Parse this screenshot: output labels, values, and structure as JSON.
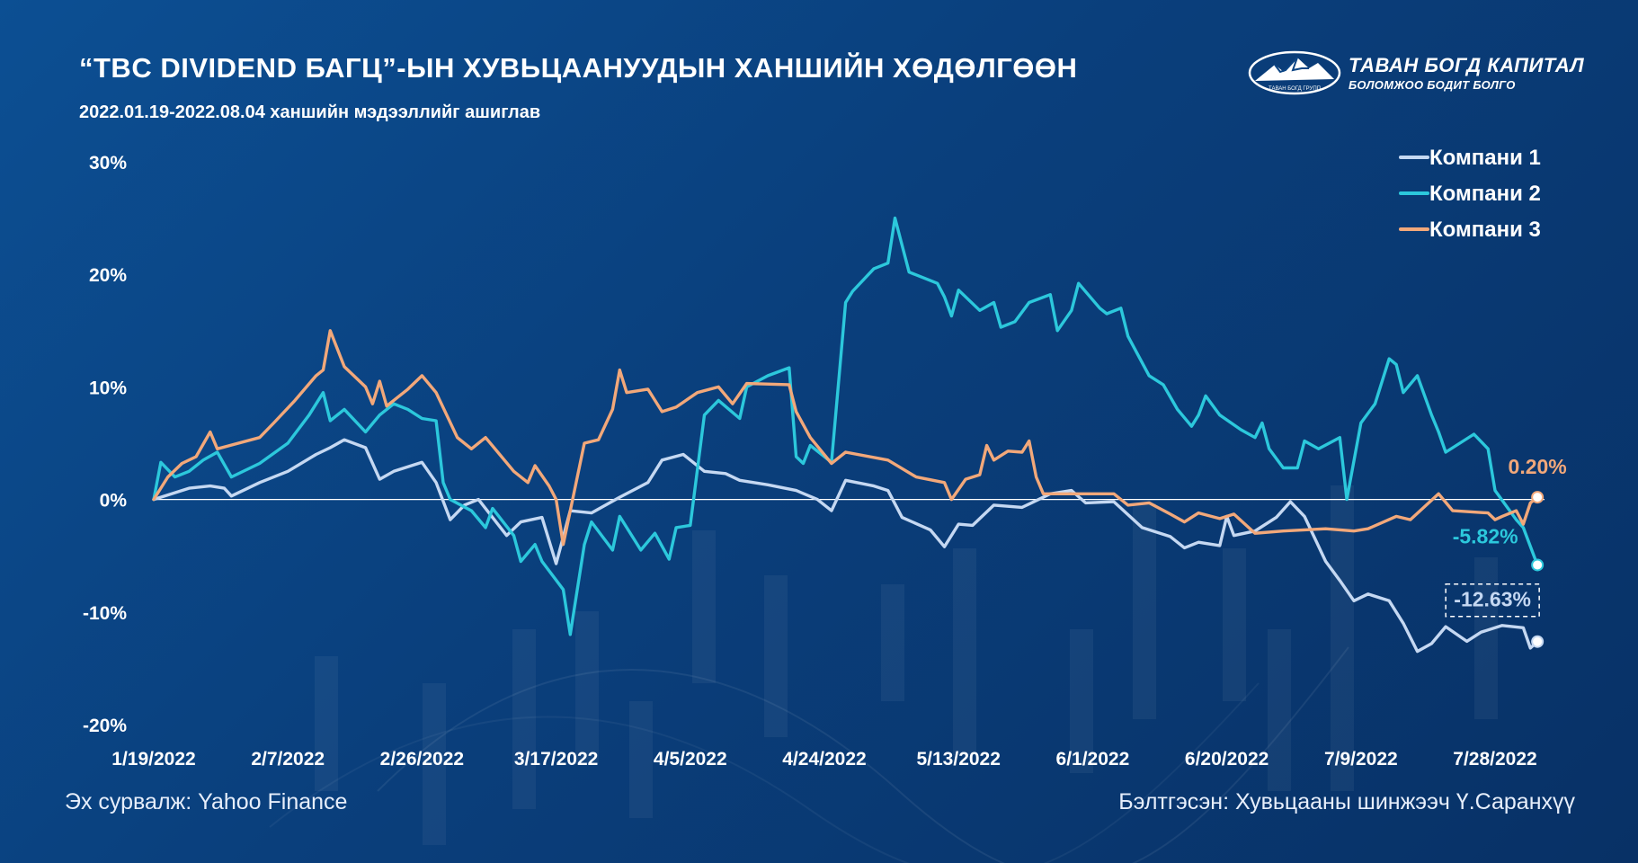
{
  "header": {
    "title": "“TBC DIVIDEND БАГЦ”-ЫН ХУВЬЦААНУУДЫН ХАНШИЙН ХӨДӨЛГӨӨН",
    "subtitle": "2022.01.19-2022.08.04  ханшийн мэдээллийг ашиглав"
  },
  "logo": {
    "name": "ТАВАН БОГД КАПИТАЛ",
    "tagline": "БОЛОМЖОО БОДИТ БОЛГО",
    "emblem_text": "ТАВАН БОГД ГРУПП",
    "icon": "mountain-logo-icon"
  },
  "footer": {
    "source": "Эх сурвалж: Yahoo Finance",
    "author": "Бэлтгэсэн: Хувьцааны шинжээч Ү.Саранхүү"
  },
  "colors": {
    "background": "#0b4585",
    "series1": "#c5d8f2",
    "series2": "#2cc8dc",
    "series3": "#f2a87a"
  },
  "chart_data": {
    "type": "line",
    "x_ticks": [
      "1/19/2022",
      "2/7/2022",
      "2/26/2022",
      "3/17/2022",
      "4/5/2022",
      "4/24/2022",
      "5/13/2022",
      "6/1/2022",
      "6/20/2022",
      "7/9/2022",
      "7/28/2022"
    ],
    "y_ticks": [
      "30%",
      "20%",
      "10%",
      "0%",
      "-10%",
      "-20%"
    ],
    "ylim": [
      -20,
      30
    ],
    "xlim": [
      "2022-01-19",
      "2022-08-04"
    ],
    "grid": false,
    "zero_line": true,
    "legend_position": "top-right",
    "series": [
      {
        "name": "Компани 1",
        "color": "#c5d8f2",
        "end_label": "-12.63%",
        "points": [
          [
            "2022-01-19",
            0
          ],
          [
            "2022-01-24",
            1
          ],
          [
            "2022-01-27",
            1.2
          ],
          [
            "2022-01-29",
            1
          ],
          [
            "2022-01-30",
            0.3
          ],
          [
            "2022-02-03",
            1.5
          ],
          [
            "2022-02-07",
            2.5
          ],
          [
            "2022-02-11",
            4
          ],
          [
            "2022-02-13",
            4.6
          ],
          [
            "2022-02-15",
            5.3
          ],
          [
            "2022-02-18",
            4.6
          ],
          [
            "2022-02-20",
            1.8
          ],
          [
            "2022-02-22",
            2.5
          ],
          [
            "2022-02-26",
            3.3
          ],
          [
            "2022-02-28",
            1.5
          ],
          [
            "2022-03-02",
            -1.8
          ],
          [
            "2022-03-04",
            -0.5
          ],
          [
            "2022-03-06",
            0
          ],
          [
            "2022-03-10",
            -3.2
          ],
          [
            "2022-03-12",
            -2
          ],
          [
            "2022-03-15",
            -1.6
          ],
          [
            "2022-03-17",
            -5.7
          ],
          [
            "2022-03-19",
            -1
          ],
          [
            "2022-03-22",
            -1.2
          ],
          [
            "2022-03-26",
            0.2
          ],
          [
            "2022-03-30",
            1.5
          ],
          [
            "2022-04-01",
            3.5
          ],
          [
            "2022-04-04",
            4
          ],
          [
            "2022-04-07",
            2.5
          ],
          [
            "2022-04-10",
            2.3
          ],
          [
            "2022-04-12",
            1.7
          ],
          [
            "2022-04-16",
            1.3
          ],
          [
            "2022-04-20",
            0.8
          ],
          [
            "2022-04-23",
            0
          ],
          [
            "2022-04-25",
            -1
          ],
          [
            "2022-04-27",
            1.7
          ],
          [
            "2022-05-01",
            1.2
          ],
          [
            "2022-05-03",
            0.8
          ],
          [
            "2022-05-05",
            -1.6
          ],
          [
            "2022-05-09",
            -2.7
          ],
          [
            "2022-05-11",
            -4.2
          ],
          [
            "2022-05-13",
            -2.2
          ],
          [
            "2022-05-15",
            -2.3
          ],
          [
            "2022-05-18",
            -0.5
          ],
          [
            "2022-05-22",
            -0.7
          ],
          [
            "2022-05-26",
            0.5
          ],
          [
            "2022-05-29",
            0.8
          ],
          [
            "2022-05-31",
            -0.3
          ],
          [
            "2022-06-04",
            -0.2
          ],
          [
            "2022-06-08",
            -2.5
          ],
          [
            "2022-06-12",
            -3.3
          ],
          [
            "2022-06-14",
            -4.3
          ],
          [
            "2022-06-16",
            -3.8
          ],
          [
            "2022-06-19",
            -4.1
          ],
          [
            "2022-06-20",
            -1.5
          ],
          [
            "2022-06-21",
            -3.2
          ],
          [
            "2022-06-24",
            -2.8
          ],
          [
            "2022-06-27",
            -1.6
          ],
          [
            "2022-06-29",
            -0.2
          ],
          [
            "2022-07-01",
            -1.5
          ],
          [
            "2022-07-04",
            -5.5
          ],
          [
            "2022-07-06",
            -7.2
          ],
          [
            "2022-07-08",
            -9
          ],
          [
            "2022-07-10",
            -8.4
          ],
          [
            "2022-07-13",
            -9
          ],
          [
            "2022-07-15",
            -11
          ],
          [
            "2022-07-17",
            -13.5
          ],
          [
            "2022-07-19",
            -12.8
          ],
          [
            "2022-07-21",
            -11.3
          ],
          [
            "2022-07-24",
            -12.6
          ],
          [
            "2022-07-26",
            -11.8
          ],
          [
            "2022-07-29",
            -11.2
          ],
          [
            "2022-08-01",
            -11.4
          ],
          [
            "2022-08-02",
            -13.2
          ],
          [
            "2022-08-03",
            -12.63
          ]
        ]
      },
      {
        "name": "Компани 2",
        "color": "#2cc8dc",
        "end_label": "-5.82%",
        "points": [
          [
            "2022-01-19",
            0
          ],
          [
            "2022-01-20",
            3.3
          ],
          [
            "2022-01-22",
            2
          ],
          [
            "2022-01-24",
            2.5
          ],
          [
            "2022-01-26",
            3.5
          ],
          [
            "2022-01-28",
            4.2
          ],
          [
            "2022-01-30",
            2
          ],
          [
            "2022-02-03",
            3.2
          ],
          [
            "2022-02-07",
            5
          ],
          [
            "2022-02-10",
            7.5
          ],
          [
            "2022-02-12",
            9.5
          ],
          [
            "2022-02-13",
            7
          ],
          [
            "2022-02-15",
            8
          ],
          [
            "2022-02-18",
            6
          ],
          [
            "2022-02-20",
            7.5
          ],
          [
            "2022-02-22",
            8.5
          ],
          [
            "2022-02-24",
            8
          ],
          [
            "2022-02-26",
            7.2
          ],
          [
            "2022-02-28",
            7
          ],
          [
            "2022-03-01",
            1.5
          ],
          [
            "2022-03-02",
            0
          ],
          [
            "2022-03-05",
            -1
          ],
          [
            "2022-03-07",
            -2.5
          ],
          [
            "2022-03-08",
            -0.8
          ],
          [
            "2022-03-11",
            -3.2
          ],
          [
            "2022-03-12",
            -5.5
          ],
          [
            "2022-03-14",
            -4
          ],
          [
            "2022-03-15",
            -5.5
          ],
          [
            "2022-03-18",
            -8
          ],
          [
            "2022-03-19",
            -12
          ],
          [
            "2022-03-21",
            -4
          ],
          [
            "2022-03-22",
            -2
          ],
          [
            "2022-03-25",
            -4.5
          ],
          [
            "2022-03-26",
            -1.5
          ],
          [
            "2022-03-28",
            -3.5
          ],
          [
            "2022-03-29",
            -4.5
          ],
          [
            "2022-03-31",
            -3
          ],
          [
            "2022-04-02",
            -5.3
          ],
          [
            "2022-04-03",
            -2.5
          ],
          [
            "2022-04-05",
            -2.3
          ],
          [
            "2022-04-07",
            7.5
          ],
          [
            "2022-04-09",
            8.8
          ],
          [
            "2022-04-12",
            7.2
          ],
          [
            "2022-04-13",
            10
          ],
          [
            "2022-04-16",
            11
          ],
          [
            "2022-04-19",
            11.7
          ],
          [
            "2022-04-20",
            3.8
          ],
          [
            "2022-04-21",
            3.2
          ],
          [
            "2022-04-22",
            4.8
          ],
          [
            "2022-04-25",
            3.3
          ],
          [
            "2022-04-27",
            17.5
          ],
          [
            "2022-04-28",
            18.5
          ],
          [
            "2022-05-01",
            20.5
          ],
          [
            "2022-05-03",
            21
          ],
          [
            "2022-05-04",
            25
          ],
          [
            "2022-05-06",
            20.2
          ],
          [
            "2022-05-10",
            19.2
          ],
          [
            "2022-05-11",
            18
          ],
          [
            "2022-05-12",
            16.3
          ],
          [
            "2022-05-13",
            18.6
          ],
          [
            "2022-05-16",
            16.8
          ],
          [
            "2022-05-18",
            17.5
          ],
          [
            "2022-05-19",
            15.3
          ],
          [
            "2022-05-21",
            15.8
          ],
          [
            "2022-05-23",
            17.5
          ],
          [
            "2022-05-26",
            18.2
          ],
          [
            "2022-05-27",
            15
          ],
          [
            "2022-05-29",
            16.8
          ],
          [
            "2022-05-30",
            19.2
          ],
          [
            "2022-06-02",
            17
          ],
          [
            "2022-06-03",
            16.5
          ],
          [
            "2022-06-05",
            17
          ],
          [
            "2022-06-06",
            14.5
          ],
          [
            "2022-06-09",
            11
          ],
          [
            "2022-06-11",
            10.2
          ],
          [
            "2022-06-13",
            8
          ],
          [
            "2022-06-15",
            6.5
          ],
          [
            "2022-06-16",
            7.5
          ],
          [
            "2022-06-17",
            9.2
          ],
          [
            "2022-06-19",
            7.5
          ],
          [
            "2022-06-22",
            6.2
          ],
          [
            "2022-06-24",
            5.5
          ],
          [
            "2022-06-25",
            6.8
          ],
          [
            "2022-06-26",
            4.5
          ],
          [
            "2022-06-28",
            2.8
          ],
          [
            "2022-06-30",
            2.8
          ],
          [
            "2022-07-01",
            5.2
          ],
          [
            "2022-07-03",
            4.5
          ],
          [
            "2022-07-06",
            5.5
          ],
          [
            "2022-07-07",
            0
          ],
          [
            "2022-07-09",
            6.8
          ],
          [
            "2022-07-11",
            8.5
          ],
          [
            "2022-07-13",
            12.5
          ],
          [
            "2022-07-14",
            12
          ],
          [
            "2022-07-15",
            9.5
          ],
          [
            "2022-07-17",
            11
          ],
          [
            "2022-07-19",
            7.5
          ],
          [
            "2022-07-20",
            6
          ],
          [
            "2022-07-21",
            4.2
          ],
          [
            "2022-07-25",
            5.8
          ],
          [
            "2022-07-27",
            4.5
          ],
          [
            "2022-07-28",
            0.8
          ],
          [
            "2022-07-31",
            -1.8
          ],
          [
            "2022-08-01",
            -2.5
          ],
          [
            "2022-08-03",
            -5.82
          ]
        ]
      },
      {
        "name": "Компани 3",
        "color": "#f2a87a",
        "end_label": "0.20%",
        "points": [
          [
            "2022-01-19",
            0
          ],
          [
            "2022-01-21",
            2
          ],
          [
            "2022-01-23",
            3.2
          ],
          [
            "2022-01-25",
            3.8
          ],
          [
            "2022-01-27",
            6
          ],
          [
            "2022-01-28",
            4.5
          ],
          [
            "2022-02-03",
            5.5
          ],
          [
            "2022-02-05",
            6.8
          ],
          [
            "2022-02-08",
            8.8
          ],
          [
            "2022-02-11",
            11
          ],
          [
            "2022-02-12",
            11.5
          ],
          [
            "2022-02-13",
            15
          ],
          [
            "2022-02-15",
            11.8
          ],
          [
            "2022-02-18",
            10
          ],
          [
            "2022-02-19",
            8.5
          ],
          [
            "2022-02-20",
            10.5
          ],
          [
            "2022-02-21",
            8.3
          ],
          [
            "2022-02-24",
            9.8
          ],
          [
            "2022-02-26",
            11
          ],
          [
            "2022-02-28",
            9.5
          ],
          [
            "2022-03-03",
            5.5
          ],
          [
            "2022-03-05",
            4.5
          ],
          [
            "2022-03-07",
            5.5
          ],
          [
            "2022-03-09",
            4
          ],
          [
            "2022-03-11",
            2.5
          ],
          [
            "2022-03-13",
            1.5
          ],
          [
            "2022-03-14",
            3
          ],
          [
            "2022-03-16",
            1.2
          ],
          [
            "2022-03-17",
            0
          ],
          [
            "2022-03-18",
            -4
          ],
          [
            "2022-03-21",
            5
          ],
          [
            "2022-03-23",
            5.3
          ],
          [
            "2022-03-25",
            8
          ],
          [
            "2022-03-26",
            11.5
          ],
          [
            "2022-03-27",
            9.5
          ],
          [
            "2022-03-30",
            9.8
          ],
          [
            "2022-04-01",
            7.8
          ],
          [
            "2022-04-03",
            8.2
          ],
          [
            "2022-04-06",
            9.5
          ],
          [
            "2022-04-09",
            10
          ],
          [
            "2022-04-11",
            8.5
          ],
          [
            "2022-04-13",
            10.3
          ],
          [
            "2022-04-19",
            10.2
          ],
          [
            "2022-04-20",
            7.8
          ],
          [
            "2022-04-22",
            5.5
          ],
          [
            "2022-04-25",
            3.2
          ],
          [
            "2022-04-27",
            4.2
          ],
          [
            "2022-05-03",
            3.5
          ],
          [
            "2022-05-07",
            2
          ],
          [
            "2022-05-11",
            1.5
          ],
          [
            "2022-05-12",
            0
          ],
          [
            "2022-05-14",
            1.8
          ],
          [
            "2022-05-16",
            2.2
          ],
          [
            "2022-05-17",
            4.8
          ],
          [
            "2022-05-18",
            3.5
          ],
          [
            "2022-05-20",
            4.3
          ],
          [
            "2022-05-22",
            4.2
          ],
          [
            "2022-05-23",
            5.2
          ],
          [
            "2022-05-24",
            2
          ],
          [
            "2022-05-25",
            0.5
          ],
          [
            "2022-06-04",
            0.5
          ],
          [
            "2022-06-06",
            -0.5
          ],
          [
            "2022-06-09",
            -0.3
          ],
          [
            "2022-06-12",
            -1.3
          ],
          [
            "2022-06-14",
            -2
          ],
          [
            "2022-06-16",
            -1.2
          ],
          [
            "2022-06-19",
            -1.7
          ],
          [
            "2022-06-21",
            -1.3
          ],
          [
            "2022-06-24",
            -3
          ],
          [
            "2022-06-28",
            -2.8
          ],
          [
            "2022-07-04",
            -2.6
          ],
          [
            "2022-07-08",
            -2.8
          ],
          [
            "2022-07-10",
            -2.6
          ],
          [
            "2022-07-14",
            -1.5
          ],
          [
            "2022-07-16",
            -1.8
          ],
          [
            "2022-07-20",
            0.5
          ],
          [
            "2022-07-22",
            -1
          ],
          [
            "2022-07-27",
            -1.2
          ],
          [
            "2022-07-28",
            -1.8
          ],
          [
            "2022-07-29",
            -1.5
          ],
          [
            "2022-07-31",
            -1
          ],
          [
            "2022-08-01",
            -2.2
          ],
          [
            "2022-08-02",
            -0.3
          ],
          [
            "2022-08-03",
            0.2
          ]
        ]
      }
    ]
  }
}
